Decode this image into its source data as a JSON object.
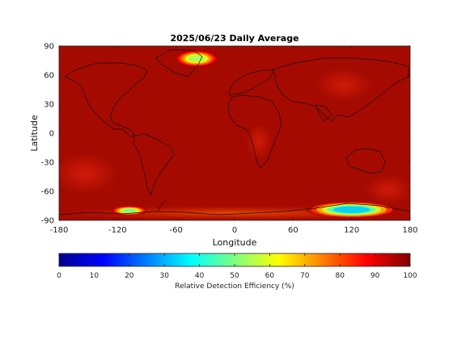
{
  "title": "2025/06/23 Daily Average",
  "map": {
    "x_label": "Longitude",
    "y_label": "Latitude",
    "x_ticks": [
      "-180",
      "-120",
      "-60",
      "0",
      "60",
      "120",
      "180"
    ],
    "y_ticks": [
      "90",
      "60",
      "30",
      "0",
      "-30",
      "-60",
      "-90"
    ],
    "xlim": [
      -180,
      180
    ],
    "ylim": [
      -90,
      90
    ],
    "base_color": "#a50a00",
    "features": [
      {
        "name": "greenland-low-efficiency",
        "lon": -39,
        "lat": 77,
        "rx": 18,
        "ry": 7,
        "value": 45
      },
      {
        "name": "antarctica-east-low-efficiency",
        "lon": 120,
        "lat": -79,
        "rx": 38,
        "ry": 7,
        "value": 20
      },
      {
        "name": "antarctica-west-low-efficiency",
        "lon": -108,
        "lat": -80,
        "rx": 15,
        "ry": 4,
        "value": 40
      }
    ]
  },
  "colorbar": {
    "label": "Relative Detection Efficiency (%)",
    "ticks": [
      "0",
      "10",
      "20",
      "30",
      "40",
      "50",
      "60",
      "70",
      "80",
      "90",
      "100"
    ],
    "range": [
      0,
      100
    ],
    "colormap": "jet"
  }
}
